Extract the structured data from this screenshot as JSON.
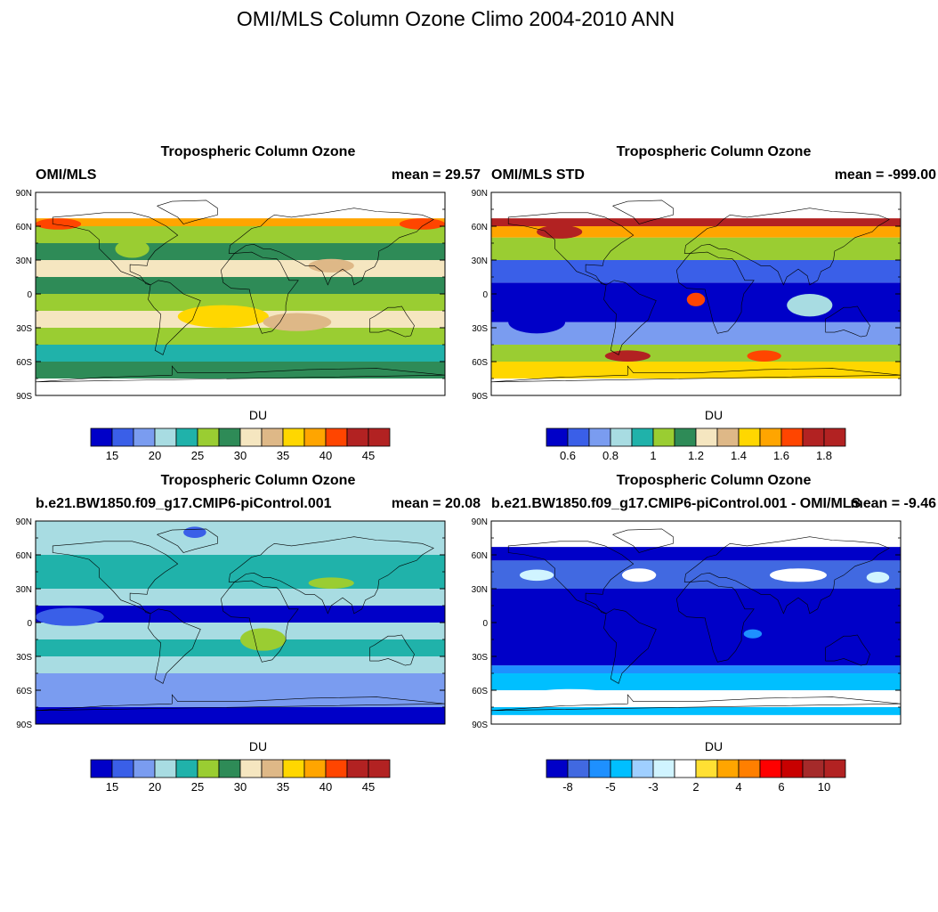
{
  "title": "OMI/MLS Column Ozone Climo 2004-2010 ANN",
  "lat_labels": [
    "90N",
    "60N",
    "30N",
    "0",
    "30S",
    "60S",
    "90S"
  ],
  "palettes": {
    "abs": [
      "#0000c8",
      "#3a5fe8",
      "#7a9cf0",
      "#a8dce2",
      "#20b2aa",
      "#9acd32",
      "#2e8b57",
      "#f5e6c0",
      "#deb887",
      "#ffd700",
      "#ffa500",
      "#ff4500",
      "#b22222",
      "#b22222"
    ],
    "std": [
      "#0000c8",
      "#3a5fe8",
      "#7a9cf0",
      "#a8dce2",
      "#20b2aa",
      "#9acd32",
      "#2e8b57",
      "#f5e6c0",
      "#deb887",
      "#ffd700",
      "#ffa500",
      "#ff4500",
      "#b22222",
      "#b22222"
    ],
    "diff": [
      "#0000c8",
      "#4169e1",
      "#1e90ff",
      "#00bfff",
      "#9fcfff",
      "#d0f4ff",
      "#ffffff",
      "#ffe033",
      "#ffa500",
      "#ff7f00",
      "#ff0000",
      "#c80000",
      "#a52a2a",
      "#b22222"
    ]
  },
  "panels": [
    {
      "title": "Tropospheric Column Ozone",
      "left": "OMI/MLS",
      "right": "mean =  29.57",
      "unit": "DU",
      "palette": "abs",
      "ticks": [
        {
          "i": 1,
          "t": "15"
        },
        {
          "i": 3,
          "t": "20"
        },
        {
          "i": 5,
          "t": "25"
        },
        {
          "i": 7,
          "t": "30"
        },
        {
          "i": 9,
          "t": "35"
        },
        {
          "i": 11,
          "t": "40"
        },
        {
          "i": 13,
          "t": "45"
        }
      ],
      "bands": [
        {
          "lat": [
            -60,
            -75
          ],
          "c": 6
        },
        {
          "lat": [
            -45,
            -60
          ],
          "c": 4
        },
        {
          "lat": [
            -30,
            -45
          ],
          "c": 5
        },
        {
          "lat": [
            -15,
            -30
          ],
          "c": 7
        },
        {
          "lat": [
            0,
            -15
          ],
          "c": 5
        },
        {
          "lat": [
            15,
            0
          ],
          "c": 6
        },
        {
          "lat": [
            30,
            15
          ],
          "c": 7
        },
        {
          "lat": [
            45,
            30
          ],
          "c": 6
        },
        {
          "lat": [
            60,
            45
          ],
          "c": 5
        },
        {
          "lat": [
            67,
            60
          ],
          "c": 10
        }
      ],
      "blobs": [
        {
          "lon": -15,
          "lat": -20,
          "rx": 40,
          "ry": 10,
          "c": 9
        },
        {
          "lon": 50,
          "lat": -25,
          "rx": 30,
          "ry": 8,
          "c": 8
        },
        {
          "lon": -95,
          "lat": 40,
          "rx": 15,
          "ry": 8,
          "c": 5
        },
        {
          "lon": 80,
          "lat": 25,
          "rx": 20,
          "ry": 6,
          "c": 8
        },
        {
          "lon": 160,
          "lat": 62,
          "rx": 20,
          "ry": 5,
          "c": 11
        },
        {
          "lon": -160,
          "lat": 62,
          "rx": 20,
          "ry": 5,
          "c": 11
        }
      ]
    },
    {
      "title": "Tropospheric Column Ozone",
      "left": "OMI/MLS STD",
      "right": "mean = -999.00",
      "unit": "DU",
      "palette": "std",
      "ticks": [
        {
          "i": 1,
          "t": "0.6"
        },
        {
          "i": 3,
          "t": "0.8"
        },
        {
          "i": 5,
          "t": "1"
        },
        {
          "i": 7,
          "t": "1.2"
        },
        {
          "i": 9,
          "t": "1.4"
        },
        {
          "i": 11,
          "t": "1.6"
        },
        {
          "i": 13,
          "t": "1.8"
        }
      ],
      "bands": [
        {
          "lat": [
            -60,
            -75
          ],
          "c": 9
        },
        {
          "lat": [
            -45,
            -60
          ],
          "c": 5
        },
        {
          "lat": [
            -25,
            -45
          ],
          "c": 2
        },
        {
          "lat": [
            10,
            -25
          ],
          "c": 0
        },
        {
          "lat": [
            30,
            10
          ],
          "c": 1
        },
        {
          "lat": [
            50,
            30
          ],
          "c": 5
        },
        {
          "lat": [
            60,
            50
          ],
          "c": 10
        },
        {
          "lat": [
            67,
            60
          ],
          "c": 12
        }
      ],
      "blobs": [
        {
          "lon": 0,
          "lat": -5,
          "rx": 8,
          "ry": 6,
          "c": 11
        },
        {
          "lon": -140,
          "lat": -25,
          "rx": 25,
          "ry": 10,
          "c": 0
        },
        {
          "lon": 100,
          "lat": -10,
          "rx": 20,
          "ry": 10,
          "c": 3
        },
        {
          "lon": -60,
          "lat": -55,
          "rx": 20,
          "ry": 5,
          "c": 12
        },
        {
          "lon": 60,
          "lat": -55,
          "rx": 15,
          "ry": 5,
          "c": 11
        },
        {
          "lon": -120,
          "lat": 55,
          "rx": 20,
          "ry": 6,
          "c": 12
        }
      ]
    },
    {
      "title": "Tropospheric Column Ozone",
      "left": "b.e21.BW1850.f09_g17.CMIP6-piControl.001",
      "right": "mean =  20.08",
      "unit": "DU",
      "palette": "abs",
      "ticks": [
        {
          "i": 1,
          "t": "15"
        },
        {
          "i": 3,
          "t": "20"
        },
        {
          "i": 5,
          "t": "25"
        },
        {
          "i": 7,
          "t": "30"
        },
        {
          "i": 9,
          "t": "35"
        },
        {
          "i": 11,
          "t": "40"
        },
        {
          "i": 13,
          "t": "45"
        }
      ],
      "bands": [
        {
          "lat": [
            -75,
            -90
          ],
          "c": 0
        },
        {
          "lat": [
            -45,
            -75
          ],
          "c": 2
        },
        {
          "lat": [
            -30,
            -45
          ],
          "c": 3
        },
        {
          "lat": [
            -15,
            -30
          ],
          "c": 4
        },
        {
          "lat": [
            0,
            -15
          ],
          "c": 3
        },
        {
          "lat": [
            15,
            0
          ],
          "c": 0
        },
        {
          "lat": [
            30,
            15
          ],
          "c": 3
        },
        {
          "lat": [
            60,
            30
          ],
          "c": 4
        },
        {
          "lat": [
            90,
            60
          ],
          "c": 3
        }
      ],
      "blobs": [
        {
          "lon": 20,
          "lat": -15,
          "rx": 20,
          "ry": 10,
          "c": 5
        },
        {
          "lon": -40,
          "lat": 80,
          "rx": 10,
          "ry": 5,
          "c": 1
        },
        {
          "lon": 80,
          "lat": 35,
          "rx": 20,
          "ry": 5,
          "c": 5
        },
        {
          "lon": -150,
          "lat": 5,
          "rx": 30,
          "ry": 8,
          "c": 1
        }
      ]
    },
    {
      "title": "Tropospheric Column Ozone",
      "left": "b.e21.BW1850.f09_g17.CMIP6-piControl.001 - OMI/MLS",
      "right": "mean =  -9.46",
      "unit": "DU",
      "palette": "diff",
      "ticks": [
        {
          "i": 1,
          "t": "-8"
        },
        {
          "i": 3,
          "t": "-5"
        },
        {
          "i": 5,
          "t": "-3"
        },
        {
          "i": 7,
          "t": "2"
        },
        {
          "i": 9,
          "t": "4"
        },
        {
          "i": 11,
          "t": "6"
        },
        {
          "i": 13,
          "t": "10"
        }
      ],
      "bands": [
        {
          "lat": [
            -75,
            -82
          ],
          "c": 3
        },
        {
          "lat": [
            -60,
            -75
          ],
          "c": 6
        },
        {
          "lat": [
            -45,
            -60
          ],
          "c": 3
        },
        {
          "lat": [
            -38,
            -45
          ],
          "c": 2
        },
        {
          "lat": [
            30,
            -38
          ],
          "c": 0
        },
        {
          "lat": [
            55,
            30
          ],
          "c": 1
        },
        {
          "lat": [
            67,
            55
          ],
          "c": 0
        }
      ],
      "blobs": [
        {
          "lon": -50,
          "lat": 42,
          "rx": 15,
          "ry": 6,
          "c": 6
        },
        {
          "lon": -140,
          "lat": 42,
          "rx": 15,
          "ry": 5,
          "c": 5
        },
        {
          "lon": 90,
          "lat": 42,
          "rx": 25,
          "ry": 6,
          "c": 6
        },
        {
          "lon": 160,
          "lat": 40,
          "rx": 10,
          "ry": 5,
          "c": 5
        },
        {
          "lon": 50,
          "lat": -10,
          "rx": 8,
          "ry": 4,
          "c": 2
        },
        {
          "lon": -110,
          "lat": -65,
          "rx": 40,
          "ry": 6,
          "c": 6
        }
      ]
    }
  ]
}
